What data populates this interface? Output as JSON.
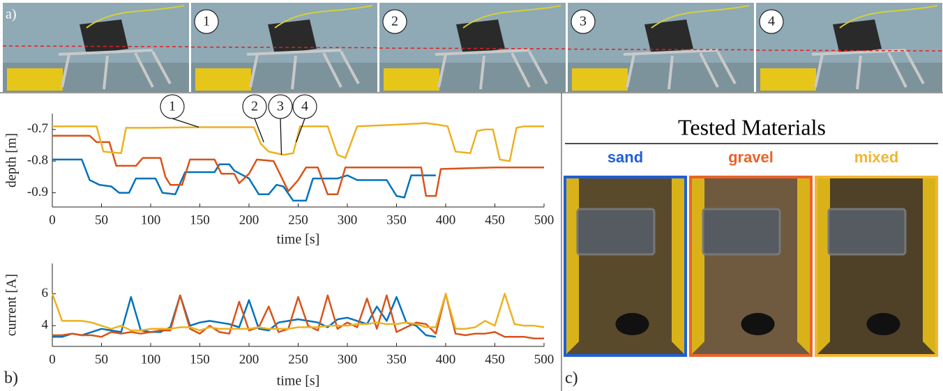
{
  "panel_a": {
    "label": "a)",
    "frames": [
      "1",
      "2",
      "3",
      "4"
    ]
  },
  "panel_b_label": "b)",
  "chart_data": [
    {
      "type": "line",
      "y_label": "depth [m]",
      "x_label": "time [s]",
      "xlim": [
        0,
        500
      ],
      "xticks": [
        0,
        50,
        100,
        150,
        200,
        250,
        300,
        350,
        400,
        450,
        500
      ],
      "ylim": [
        -0.945,
        -0.65
      ],
      "yticks": [
        -0.7,
        -0.8,
        -0.9
      ],
      "series": [
        {
          "color": "#0072bd",
          "x": [
            0,
            30,
            38,
            48,
            60,
            68,
            78,
            85,
            105,
            112,
            125,
            135,
            165,
            170,
            180,
            185,
            200,
            210,
            220,
            228,
            235,
            245,
            258,
            265,
            290,
            300,
            310,
            340,
            350,
            358,
            365,
            390
          ],
          "values": [
            -0.795,
            -0.795,
            -0.86,
            -0.875,
            -0.88,
            -0.9,
            -0.9,
            -0.855,
            -0.855,
            -0.9,
            -0.905,
            -0.835,
            -0.835,
            -0.81,
            -0.81,
            -0.83,
            -0.855,
            -0.905,
            -0.905,
            -0.875,
            -0.88,
            -0.925,
            -0.925,
            -0.855,
            -0.855,
            -0.845,
            -0.86,
            -0.86,
            -0.91,
            -0.915,
            -0.845,
            -0.845
          ]
        },
        {
          "color": "#d95319",
          "x": [
            0,
            38,
            45,
            58,
            65,
            85,
            92,
            110,
            115,
            120,
            132,
            140,
            165,
            172,
            185,
            190,
            200,
            208,
            225,
            240,
            250,
            258,
            270,
            280,
            290,
            298,
            375,
            380,
            390,
            395,
            450,
            500
          ],
          "values": [
            -0.72,
            -0.72,
            -0.74,
            -0.74,
            -0.815,
            -0.815,
            -0.79,
            -0.79,
            -0.85,
            -0.875,
            -0.875,
            -0.795,
            -0.795,
            -0.84,
            -0.84,
            -0.87,
            -0.84,
            -0.795,
            -0.8,
            -0.895,
            -0.86,
            -0.82,
            -0.82,
            -0.905,
            -0.905,
            -0.82,
            -0.82,
            -0.91,
            -0.91,
            -0.825,
            -0.82,
            -0.82
          ]
        },
        {
          "color": "#edb120",
          "x": [
            0,
            45,
            52,
            70,
            75,
            100,
            150,
            205,
            212,
            220,
            235,
            245,
            252,
            280,
            290,
            298,
            310,
            350,
            380,
            392,
            402,
            410,
            425,
            432,
            440,
            448,
            455,
            465,
            472,
            480,
            500
          ],
          "values": [
            -0.69,
            -0.69,
            -0.77,
            -0.775,
            -0.695,
            -0.695,
            -0.693,
            -0.693,
            -0.745,
            -0.77,
            -0.78,
            -0.775,
            -0.69,
            -0.69,
            -0.78,
            -0.79,
            -0.69,
            -0.685,
            -0.68,
            -0.685,
            -0.69,
            -0.77,
            -0.775,
            -0.705,
            -0.7,
            -0.7,
            -0.795,
            -0.8,
            -0.695,
            -0.69,
            -0.69
          ]
        }
      ],
      "annotations": [
        {
          "text": "1",
          "x": 149,
          "y": -0.693
        },
        {
          "text": "2",
          "x": 215,
          "y": -0.74
        },
        {
          "text": "3",
          "x": 233,
          "y": -0.78
        },
        {
          "text": "4",
          "x": 248,
          "y": -0.74
        }
      ]
    },
    {
      "type": "line",
      "y_label": "current [A]",
      "x_label": "time [s]",
      "xlim": [
        0,
        500
      ],
      "xticks": [
        0,
        50,
        100,
        150,
        200,
        250,
        300,
        350,
        400,
        450,
        500
      ],
      "ylim": [
        2.7,
        7.9
      ],
      "yticks": [
        4,
        6
      ],
      "x": [
        0,
        10,
        20,
        30,
        40,
        50,
        60,
        70,
        80,
        90,
        100,
        110,
        120,
        130,
        140,
        150,
        160,
        170,
        180,
        190,
        200,
        210,
        220,
        230,
        240,
        250,
        260,
        270,
        280,
        290,
        300,
        310,
        320,
        330,
        340,
        350,
        360,
        370,
        380,
        390,
        400,
        410,
        420,
        430,
        440,
        450,
        460,
        470,
        480,
        490,
        500
      ],
      "series": [
        {
          "color": "#0072bd",
          "values": [
            3.3,
            3.3,
            3.5,
            3.4,
            3.6,
            3.8,
            3.7,
            3.6,
            5.8,
            3.7,
            3.6,
            3.6,
            3.9,
            5.9,
            4.0,
            4.2,
            4.3,
            4.2,
            4.1,
            3.9,
            5.6,
            3.8,
            3.7,
            4.2,
            4.3,
            4.4,
            4.3,
            4.2,
            3.9,
            4.4,
            4.5,
            4.3,
            4.1,
            5.2,
            4.3,
            5.8,
            4.2,
            4.0,
            3.4,
            3.3,
            null,
            null,
            null,
            null,
            null,
            null,
            null,
            null,
            null,
            null,
            null
          ]
        },
        {
          "color": "#d95319",
          "values": [
            3.4,
            3.4,
            3.5,
            3.4,
            3.4,
            3.3,
            3.6,
            3.5,
            3.6,
            3.5,
            3.6,
            3.7,
            3.7,
            5.9,
            3.8,
            3.5,
            4.0,
            3.6,
            3.5,
            5.5,
            3.7,
            3.9,
            5.2,
            3.6,
            3.8,
            5.8,
            4.0,
            3.7,
            5.9,
            3.8,
            4.2,
            3.9,
            5.7,
            3.8,
            5.9,
            3.6,
            3.9,
            4.2,
            4.1,
            3.5,
            6.0,
            3.5,
            3.4,
            3.5,
            3.5,
            3.6,
            3.3,
            3.3,
            3.3,
            3.2,
            3.2
          ]
        },
        {
          "color": "#edb120",
          "values": [
            6.0,
            4.3,
            4.3,
            4.3,
            4.2,
            4.0,
            3.8,
            4.0,
            3.7,
            3.7,
            3.8,
            3.8,
            3.8,
            3.9,
            3.9,
            3.7,
            3.9,
            3.8,
            3.8,
            3.8,
            3.8,
            3.9,
            3.8,
            3.8,
            3.8,
            3.9,
            3.9,
            3.9,
            4.0,
            4.0,
            4.0,
            4.1,
            4.1,
            4.2,
            4.1,
            4.1,
            4.2,
            4.1,
            3.9,
            3.9,
            6.0,
            3.8,
            3.8,
            3.9,
            4.3,
            4.0,
            6.0,
            4.1,
            4.0,
            4.0,
            3.9
          ]
        }
      ]
    }
  ],
  "panel_c": {
    "label": "c)",
    "title": "Tested Materials",
    "materials": [
      {
        "name": "sand",
        "color": "#1f5fd6"
      },
      {
        "name": "gravel",
        "color": "#e8642a"
      },
      {
        "name": "mixed",
        "color": "#f2b632"
      }
    ]
  }
}
